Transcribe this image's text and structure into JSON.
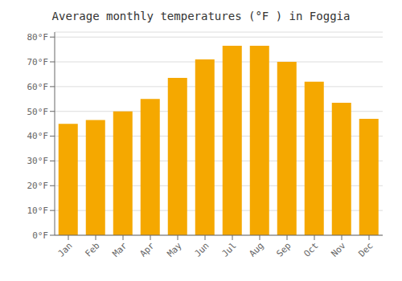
{
  "chart_data": {
    "type": "bar",
    "title": "Average monthly temperatures (°F ) in Foggia",
    "categories": [
      "Jan",
      "Feb",
      "Mar",
      "Apr",
      "May",
      "Jun",
      "Jul",
      "Aug",
      "Sep",
      "Oct",
      "Nov",
      "Dec"
    ],
    "values": [
      45,
      46.5,
      50,
      55,
      63.5,
      71,
      76.5,
      76.5,
      70,
      62,
      53.5,
      47
    ],
    "color": "#F5A800",
    "ylim": [
      0,
      82
    ],
    "yticks": [
      {
        "value": 0,
        "label": "0°F"
      },
      {
        "value": 10,
        "label": "10°F"
      },
      {
        "value": 20,
        "label": "20°F"
      },
      {
        "value": 30,
        "label": "30°F"
      },
      {
        "value": 40,
        "label": "40°F"
      },
      {
        "value": 50,
        "label": "50°F"
      },
      {
        "value": 60,
        "label": "60°F"
      },
      {
        "value": 70,
        "label": "70°F"
      },
      {
        "value": 80,
        "label": "80°F"
      }
    ],
    "grid": true
  }
}
